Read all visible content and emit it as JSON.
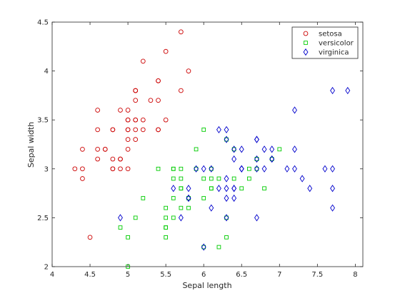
{
  "chart_data": {
    "type": "scatter",
    "xlabel": "Sepal length",
    "ylabel": "Sepal width",
    "xlim": [
      4,
      8.1
    ],
    "ylim": [
      2,
      4.5
    ],
    "xticks": [
      "4",
      "4.5",
      "5",
      "5.5",
      "6",
      "6.5",
      "7",
      "7.5",
      "8"
    ],
    "yticks": [
      "2",
      "2.5",
      "3",
      "3.5",
      "4",
      "4.5"
    ],
    "grid": false,
    "legend_position": "top-right",
    "series": [
      {
        "name": "setosa",
        "marker": "circle",
        "color": "#cc0000",
        "points": [
          [
            5.1,
            3.5
          ],
          [
            4.9,
            3.0
          ],
          [
            4.7,
            3.2
          ],
          [
            4.6,
            3.1
          ],
          [
            5.0,
            3.6
          ],
          [
            5.4,
            3.9
          ],
          [
            4.6,
            3.4
          ],
          [
            5.0,
            3.4
          ],
          [
            4.4,
            2.9
          ],
          [
            4.9,
            3.1
          ],
          [
            5.4,
            3.7
          ],
          [
            4.8,
            3.4
          ],
          [
            4.8,
            3.0
          ],
          [
            4.3,
            3.0
          ],
          [
            5.8,
            4.0
          ],
          [
            5.7,
            4.4
          ],
          [
            5.4,
            3.9
          ],
          [
            5.1,
            3.5
          ],
          [
            5.7,
            3.8
          ],
          [
            5.1,
            3.8
          ],
          [
            5.4,
            3.4
          ],
          [
            5.1,
            3.7
          ],
          [
            4.6,
            3.6
          ],
          [
            5.1,
            3.3
          ],
          [
            4.8,
            3.4
          ],
          [
            5.0,
            3.0
          ],
          [
            5.0,
            3.4
          ],
          [
            5.2,
            3.5
          ],
          [
            5.2,
            3.4
          ],
          [
            4.7,
            3.2
          ],
          [
            4.8,
            3.1
          ],
          [
            5.4,
            3.4
          ],
          [
            5.2,
            4.1
          ],
          [
            5.5,
            4.2
          ],
          [
            4.9,
            3.1
          ],
          [
            5.0,
            3.2
          ],
          [
            5.5,
            3.5
          ],
          [
            4.9,
            3.6
          ],
          [
            4.4,
            3.0
          ],
          [
            5.1,
            3.4
          ],
          [
            5.0,
            3.5
          ],
          [
            4.5,
            2.3
          ],
          [
            4.4,
            3.2
          ],
          [
            5.0,
            3.5
          ],
          [
            5.1,
            3.8
          ],
          [
            4.8,
            3.0
          ],
          [
            5.1,
            3.8
          ],
          [
            4.6,
            3.2
          ],
          [
            5.3,
            3.7
          ],
          [
            5.0,
            3.3
          ]
        ]
      },
      {
        "name": "versicolor",
        "marker": "square",
        "color": "#00cc00",
        "points": [
          [
            7.0,
            3.2
          ],
          [
            6.4,
            3.2
          ],
          [
            6.9,
            3.1
          ],
          [
            5.5,
            2.3
          ],
          [
            6.5,
            2.8
          ],
          [
            5.7,
            2.8
          ],
          [
            6.3,
            3.3
          ],
          [
            4.9,
            2.4
          ],
          [
            6.6,
            2.9
          ],
          [
            5.2,
            2.7
          ],
          [
            5.0,
            2.0
          ],
          [
            5.9,
            3.0
          ],
          [
            6.0,
            2.2
          ],
          [
            6.1,
            2.9
          ],
          [
            5.6,
            2.9
          ],
          [
            6.7,
            3.1
          ],
          [
            5.6,
            3.0
          ],
          [
            5.8,
            2.7
          ],
          [
            6.2,
            2.2
          ],
          [
            5.6,
            2.5
          ],
          [
            5.9,
            3.2
          ],
          [
            6.1,
            2.8
          ],
          [
            6.3,
            2.5
          ],
          [
            6.1,
            2.8
          ],
          [
            6.4,
            2.9
          ],
          [
            6.6,
            3.0
          ],
          [
            6.8,
            2.8
          ],
          [
            6.7,
            3.0
          ],
          [
            6.0,
            2.9
          ],
          [
            5.7,
            2.6
          ],
          [
            5.5,
            2.4
          ],
          [
            5.5,
            2.4
          ],
          [
            5.8,
            2.7
          ],
          [
            6.0,
            2.7
          ],
          [
            5.4,
            3.0
          ],
          [
            6.0,
            3.4
          ],
          [
            6.7,
            3.1
          ],
          [
            6.3,
            2.3
          ],
          [
            5.6,
            3.0
          ],
          [
            5.5,
            2.5
          ],
          [
            5.5,
            2.6
          ],
          [
            6.1,
            3.0
          ],
          [
            5.8,
            2.6
          ],
          [
            5.0,
            2.3
          ],
          [
            5.6,
            2.7
          ],
          [
            5.7,
            3.0
          ],
          [
            5.7,
            2.9
          ],
          [
            6.2,
            2.9
          ],
          [
            5.1,
            2.5
          ],
          [
            5.7,
            2.8
          ]
        ]
      },
      {
        "name": "virginica",
        "marker": "diamond",
        "color": "#0000cc",
        "points": [
          [
            6.3,
            3.3
          ],
          [
            5.8,
            2.7
          ],
          [
            7.1,
            3.0
          ],
          [
            6.3,
            2.9
          ],
          [
            6.5,
            3.0
          ],
          [
            7.6,
            3.0
          ],
          [
            4.9,
            2.5
          ],
          [
            7.3,
            2.9
          ],
          [
            6.7,
            2.5
          ],
          [
            7.2,
            3.6
          ],
          [
            6.5,
            3.2
          ],
          [
            6.4,
            2.7
          ],
          [
            6.8,
            3.0
          ],
          [
            5.7,
            2.5
          ],
          [
            5.8,
            2.8
          ],
          [
            6.4,
            3.2
          ],
          [
            6.5,
            3.0
          ],
          [
            7.7,
            3.8
          ],
          [
            7.7,
            2.6
          ],
          [
            6.0,
            2.2
          ],
          [
            6.9,
            3.2
          ],
          [
            5.6,
            2.8
          ],
          [
            7.7,
            2.8
          ],
          [
            6.3,
            2.7
          ],
          [
            6.7,
            3.3
          ],
          [
            7.2,
            3.2
          ],
          [
            6.2,
            2.8
          ],
          [
            6.1,
            3.0
          ],
          [
            6.4,
            2.8
          ],
          [
            7.2,
            3.0
          ],
          [
            7.4,
            2.8
          ],
          [
            7.9,
            3.8
          ],
          [
            6.4,
            2.8
          ],
          [
            6.3,
            2.8
          ],
          [
            6.1,
            2.6
          ],
          [
            7.7,
            3.0
          ],
          [
            6.3,
            3.4
          ],
          [
            6.4,
            3.1
          ],
          [
            6.0,
            3.0
          ],
          [
            6.9,
            3.1
          ],
          [
            6.7,
            3.1
          ],
          [
            6.9,
            3.1
          ],
          [
            5.8,
            2.7
          ],
          [
            6.8,
            3.2
          ],
          [
            6.7,
            3.3
          ],
          [
            6.7,
            3.0
          ],
          [
            6.3,
            2.5
          ],
          [
            6.5,
            3.0
          ],
          [
            6.2,
            3.4
          ],
          [
            5.9,
            3.0
          ]
        ]
      }
    ]
  }
}
